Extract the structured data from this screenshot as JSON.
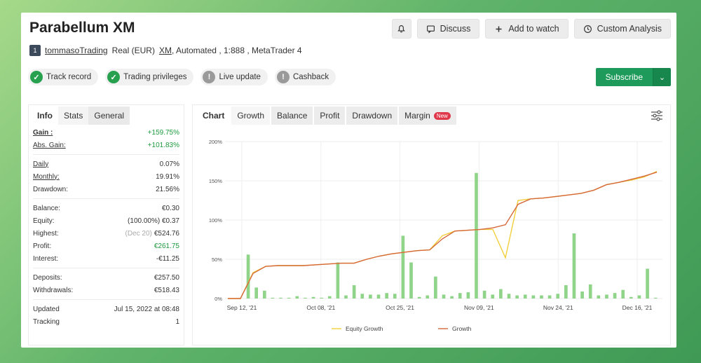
{
  "header": {
    "title": "Parabellum XM",
    "actions": {
      "discuss": "Discuss",
      "watch": "Add to watch",
      "analysis": "Custom Analysis"
    }
  },
  "account": {
    "badge": "1",
    "user": "tommasoTrading",
    "type": "Real (EUR)",
    "broker": "XM",
    "details": ", Automated , 1:888 , MetaTrader 4"
  },
  "chips": [
    {
      "label": "Track record",
      "status": "ok"
    },
    {
      "label": "Trading privileges",
      "status": "ok"
    },
    {
      "label": "Live update",
      "status": "info"
    },
    {
      "label": "Cashback",
      "status": "info"
    }
  ],
  "subscribe": {
    "label": "Subscribe"
  },
  "info_tabs": [
    "Info",
    "Stats",
    "General"
  ],
  "info": {
    "gain_label": "Gain :",
    "gain": "+159.75%",
    "abs_gain_label": "Abs. Gain:",
    "abs_gain": "+101.83%",
    "daily_label": "Daily",
    "daily": "0.07%",
    "monthly_label": "Monthly:",
    "monthly": "19.91%",
    "drawdown_label": "Drawdown:",
    "drawdown": "21.56%",
    "balance_label": "Balance:",
    "balance": "€0.30",
    "equity_label": "Equity:",
    "equity": "(100.00%) €0.37",
    "highest_label": "Highest:",
    "highest_date": "(Dec 20)",
    "highest": "€524.76",
    "profit_label": "Profit:",
    "profit": "€261.75",
    "interest_label": "Interest:",
    "interest": "-€11.25",
    "deposits_label": "Deposits:",
    "deposits": "€257.50",
    "withdrawals_label": "Withdrawals:",
    "withdrawals": "€518.43",
    "updated_label": "Updated",
    "updated": "Jul 15, 2022 at 08:48",
    "tracking_label": "Tracking",
    "tracking": "1"
  },
  "chart_tabs": [
    "Chart",
    "Growth",
    "Balance",
    "Profit",
    "Drawdown",
    "Margin"
  ],
  "chart_new_badge": "New",
  "colors": {
    "accent": "#1e9a5a",
    "growth": "#d5683a",
    "equity": "#f2cf3a",
    "bar": "#8fd489"
  },
  "chart_data": {
    "type": "line",
    "ylim": [
      0,
      200
    ],
    "y_ticks": [
      "0%",
      "50%",
      "100%",
      "150%",
      "200%"
    ],
    "x_ticks": [
      "Sep 12, '21",
      "Oct 08, '21",
      "Oct 25, '21",
      "Nov 09, '21",
      "Nov 24, '21",
      "Dec 16, '21"
    ],
    "series": [
      {
        "name": "Equity Growth",
        "values": [
          0,
          0,
          33,
          41,
          42,
          42,
          42,
          43,
          44,
          45,
          45,
          50,
          54,
          57,
          59,
          61,
          62,
          80,
          86,
          87,
          88,
          88,
          52,
          125,
          127,
          128,
          130,
          132,
          134,
          138,
          145,
          148,
          151,
          155,
          162
        ]
      },
      {
        "name": "Growth",
        "values": [
          0,
          0,
          32,
          41,
          42,
          42,
          42,
          43,
          44,
          45,
          45,
          50,
          54,
          57,
          59,
          61,
          62,
          76,
          86,
          87,
          88,
          90,
          94,
          120,
          127,
          128,
          130,
          132,
          134,
          138,
          145,
          148,
          152,
          156,
          161
        ]
      }
    ],
    "bars": [
      0,
      0,
      56,
      14,
      10,
      1,
      1,
      1,
      3,
      1,
      2,
      1,
      3,
      46,
      4,
      17,
      6,
      5,
      5,
      7,
      6,
      80,
      46,
      2,
      4,
      28,
      5,
      3,
      7,
      8,
      160,
      10,
      5,
      12,
      6,
      4,
      5,
      4,
      4,
      4,
      6,
      17,
      83,
      9,
      18,
      4,
      5,
      7,
      11,
      2,
      4,
      38,
      1
    ]
  }
}
